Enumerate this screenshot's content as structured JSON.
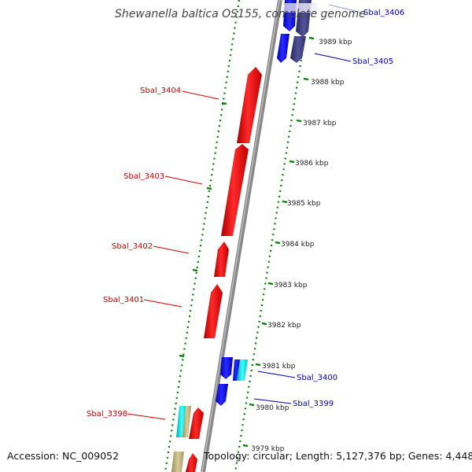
{
  "title": "Shewanella baltica OS155, complete genome",
  "footer": {
    "accession": "Accession: NC_009052",
    "topology": "Topology: circular; Length: 5,127,376 bp; Genes: 4,448"
  },
  "colors": {
    "forward_gene": "#ff0000",
    "reverse_gene": "#0000ff",
    "reverse_gene_dark": "#3a3a8a",
    "reverse_gene_light": "#00ffff",
    "rna_gene": "#c8b880",
    "backbone": "#888888",
    "tick_dots": "#008000",
    "forward_label": "#cc0000",
    "reverse_label": "#0000aa"
  },
  "scale_ticks": [
    {
      "label": "3989 kbp"
    },
    {
      "label": "3988 kbp"
    },
    {
      "label": "3987 kbp"
    },
    {
      "label": "3986 kbp"
    },
    {
      "label": "3985 kbp"
    },
    {
      "label": "3984 kbp"
    },
    {
      "label": "3983 kbp"
    },
    {
      "label": "3982 kbp"
    },
    {
      "label": "3981 kbp"
    },
    {
      "label": "3980 kbp"
    },
    {
      "label": "3979 kbp"
    }
  ],
  "gene_labels": {
    "sbal_3406": "Sbal_3406",
    "sbal_3405": "Sbal_3405",
    "sbal_3404": "Sbal_3404",
    "sbal_3403": "Sbal_3403",
    "sbal_3402": "Sbal_3402",
    "sbal_3401": "Sbal_3401",
    "sbal_3400": "Sbal_3400",
    "sbal_3399": "Sbal_3399",
    "sbal_3398": "Sbal_3398"
  }
}
